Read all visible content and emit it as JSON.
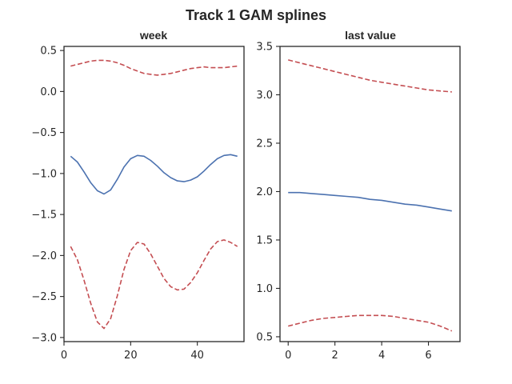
{
  "figure": {
    "title": "Track 1 GAM splines"
  },
  "colors": {
    "estimate": "#4c72b0",
    "interval": "#c44e52",
    "axis": "#262626"
  },
  "chart_data": [
    {
      "type": "line",
      "title": "week",
      "xlabel": "",
      "ylabel": "",
      "xlim": [
        0,
        54
      ],
      "ylim": [
        -3.05,
        0.55
      ],
      "xticks": [
        0,
        20,
        40
      ],
      "yticks": [
        -3.0,
        -2.5,
        -2.0,
        -1.5,
        -1.0,
        -0.5,
        0.0,
        0.5
      ],
      "grid": false,
      "series": [
        {
          "style": "solid",
          "color": "#4c72b0",
          "x": [
            2,
            4,
            6,
            8,
            10,
            12,
            14,
            16,
            18,
            20,
            22,
            24,
            26,
            28,
            30,
            32,
            34,
            36,
            38,
            40,
            42,
            44,
            46,
            48,
            50,
            52
          ],
          "y": [
            -0.79,
            -0.86,
            -0.98,
            -1.11,
            -1.21,
            -1.25,
            -1.2,
            -1.07,
            -0.92,
            -0.82,
            -0.78,
            -0.79,
            -0.84,
            -0.91,
            -0.99,
            -1.05,
            -1.09,
            -1.1,
            -1.08,
            -1.04,
            -0.97,
            -0.89,
            -0.82,
            -0.78,
            -0.77,
            -0.79
          ]
        },
        {
          "style": "dashed",
          "color": "#c44e52",
          "x": [
            2,
            4,
            6,
            8,
            10,
            12,
            14,
            16,
            18,
            20,
            22,
            24,
            26,
            28,
            30,
            32,
            34,
            36,
            38,
            40,
            42,
            44,
            46,
            48,
            50,
            52
          ],
          "y": [
            0.31,
            0.33,
            0.35,
            0.37,
            0.38,
            0.38,
            0.37,
            0.35,
            0.32,
            0.28,
            0.25,
            0.22,
            0.21,
            0.2,
            0.21,
            0.22,
            0.24,
            0.26,
            0.28,
            0.29,
            0.3,
            0.29,
            0.29,
            0.29,
            0.3,
            0.31
          ]
        },
        {
          "style": "dashed",
          "color": "#c44e52",
          "x": [
            2,
            4,
            6,
            8,
            10,
            12,
            14,
            16,
            18,
            20,
            22,
            24,
            26,
            28,
            30,
            32,
            34,
            36,
            38,
            40,
            42,
            44,
            46,
            48,
            50,
            52
          ],
          "y": [
            -1.89,
            -2.05,
            -2.3,
            -2.58,
            -2.81,
            -2.89,
            -2.77,
            -2.49,
            -2.17,
            -1.94,
            -1.84,
            -1.86,
            -1.98,
            -2.13,
            -2.28,
            -2.38,
            -2.42,
            -2.41,
            -2.33,
            -2.21,
            -2.06,
            -1.92,
            -1.83,
            -1.81,
            -1.84,
            -1.89
          ]
        }
      ]
    },
    {
      "type": "line",
      "title": "last value",
      "xlabel": "",
      "ylabel": "",
      "xlim": [
        -0.35,
        7.35
      ],
      "ylim": [
        0.45,
        3.5
      ],
      "xticks": [
        0,
        2,
        4,
        6
      ],
      "yticks": [
        0.5,
        1.0,
        1.5,
        2.0,
        2.5,
        3.0,
        3.5
      ],
      "grid": false,
      "series": [
        {
          "style": "solid",
          "color": "#4c72b0",
          "x": [
            0,
            0.5,
            1,
            1.5,
            2,
            2.5,
            3,
            3.5,
            4,
            4.5,
            5,
            5.5,
            6,
            6.5,
            7
          ],
          "y": [
            1.99,
            1.99,
            1.98,
            1.97,
            1.96,
            1.95,
            1.94,
            1.92,
            1.91,
            1.89,
            1.87,
            1.86,
            1.84,
            1.82,
            1.8
          ]
        },
        {
          "style": "dashed",
          "color": "#c44e52",
          "x": [
            0,
            0.5,
            1,
            1.5,
            2,
            2.5,
            3,
            3.5,
            4,
            4.5,
            5,
            5.5,
            6,
            6.5,
            7
          ],
          "y": [
            3.36,
            3.33,
            3.3,
            3.27,
            3.24,
            3.21,
            3.18,
            3.15,
            3.13,
            3.11,
            3.09,
            3.07,
            3.05,
            3.04,
            3.03
          ]
        },
        {
          "style": "dashed",
          "color": "#c44e52",
          "x": [
            0,
            0.5,
            1,
            1.5,
            2,
            2.5,
            3,
            3.5,
            4,
            4.5,
            5,
            5.5,
            6,
            6.5,
            7
          ],
          "y": [
            0.61,
            0.64,
            0.67,
            0.69,
            0.7,
            0.71,
            0.72,
            0.72,
            0.72,
            0.71,
            0.69,
            0.67,
            0.65,
            0.61,
            0.56
          ]
        }
      ]
    }
  ]
}
